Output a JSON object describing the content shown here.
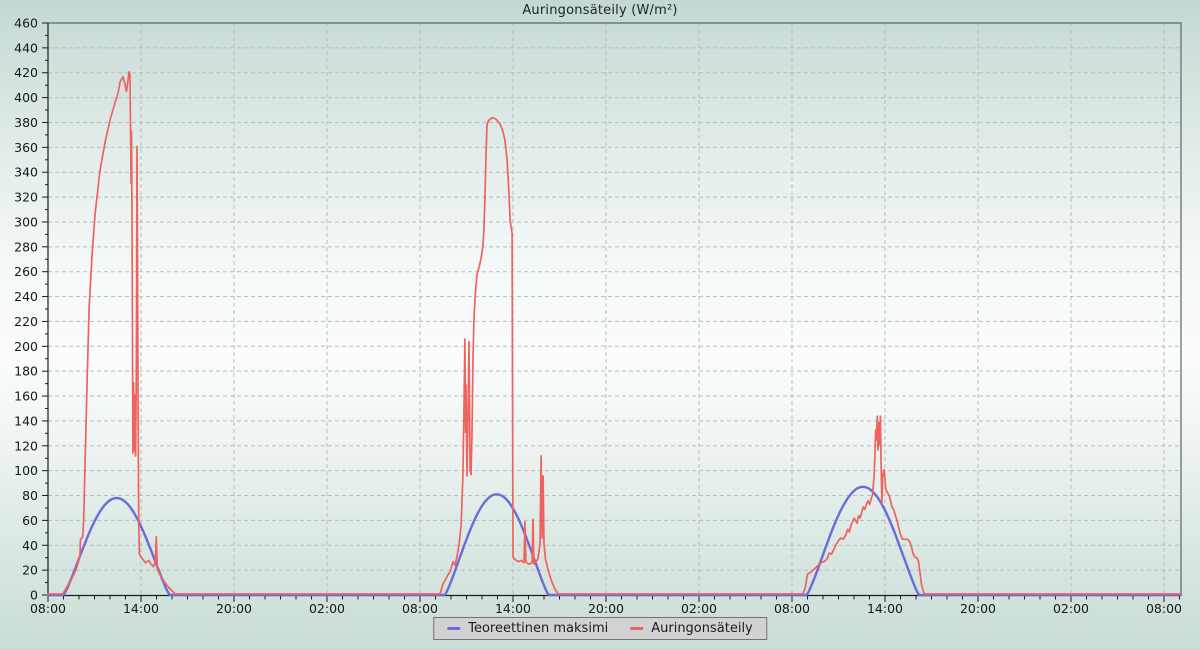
{
  "page": {
    "title": "Auringonsäteily (W/m²)"
  },
  "chart_data": {
    "type": "line",
    "title": "Auringonsäteily (W/m²)",
    "x_axis": {
      "unit": "time-of-day",
      "span_hours": 72,
      "major_tick_interval_hours": 6,
      "minor_tick_interval_hours": 1,
      "tick_labels": [
        "08:00",
        "14:00",
        "20:00",
        "02:00",
        "08:00",
        "14:00",
        "20:00",
        "02:00",
        "08:00",
        "14:00",
        "20:00",
        "02:00",
        "08:00"
      ]
    },
    "y_axis": {
      "min": 0,
      "max": 460,
      "major_step": 20,
      "minor_step": 10,
      "unit": "W/m²"
    },
    "grid": {
      "style": "dashed",
      "color": "#b7bdbd"
    },
    "legend": {
      "position": "bottom-center"
    },
    "series": [
      {
        "name": "Teoreettinen maksimi",
        "color": "#6b6bd9",
        "shape": "clear-sky-bell",
        "bells": [
          {
            "start_h": 1.0,
            "peak_h": 4.55,
            "peak_value": 78,
            "end_h": 7.85
          },
          {
            "start_h": 25.6,
            "peak_h": 28.85,
            "peak_value": 81,
            "end_h": 32.3
          },
          {
            "start_h": 48.95,
            "peak_h": 52.55,
            "peak_value": 87,
            "end_h": 56.2
          }
        ]
      },
      {
        "name": "Auringonsäteily",
        "color": "#ee625f",
        "points": [
          [
            0,
            0
          ],
          [
            0.97,
            0
          ],
          [
            1.1,
            3
          ],
          [
            1.42,
            10
          ],
          [
            1.68,
            16
          ],
          [
            1.81,
            20
          ],
          [
            1.97,
            26
          ],
          [
            2.06,
            31
          ],
          [
            2.1,
            44
          ],
          [
            2.24,
            46
          ],
          [
            2.3,
            60
          ],
          [
            2.4,
            110
          ],
          [
            2.52,
            170
          ],
          [
            2.65,
            230
          ],
          [
            2.84,
            272
          ],
          [
            3.03,
            305
          ],
          [
            3.35,
            340
          ],
          [
            3.68,
            363
          ],
          [
            4.0,
            381
          ],
          [
            4.32,
            395
          ],
          [
            4.52,
            403
          ],
          [
            4.65,
            412
          ],
          [
            4.84,
            416
          ],
          [
            4.97,
            410
          ],
          [
            5.06,
            404
          ],
          [
            5.16,
            413
          ],
          [
            5.23,
            420
          ],
          [
            5.29,
            417
          ],
          [
            5.32,
            376
          ],
          [
            5.36,
            330
          ],
          [
            5.39,
            372
          ],
          [
            5.42,
            300
          ],
          [
            5.45,
            205
          ],
          [
            5.48,
            113
          ],
          [
            5.52,
            170
          ],
          [
            5.55,
            115
          ],
          [
            5.6,
            160
          ],
          [
            5.65,
            111
          ],
          [
            5.7,
            175
          ],
          [
            5.74,
            360
          ],
          [
            5.77,
            300
          ],
          [
            5.81,
            150
          ],
          [
            5.85,
            60
          ],
          [
            5.9,
            32
          ],
          [
            6.1,
            28
          ],
          [
            6.3,
            25
          ],
          [
            6.5,
            27
          ],
          [
            6.65,
            24
          ],
          [
            6.8,
            22
          ],
          [
            6.93,
            26
          ],
          [
            6.99,
            46
          ],
          [
            7.05,
            20
          ],
          [
            7.2,
            16
          ],
          [
            7.5,
            10
          ],
          [
            7.8,
            5
          ],
          [
            8.05,
            2
          ],
          [
            8.2,
            0
          ],
          [
            25.29,
            0
          ],
          [
            25.48,
            8
          ],
          [
            25.74,
            14
          ],
          [
            25.94,
            18
          ],
          [
            26.13,
            26
          ],
          [
            26.26,
            23
          ],
          [
            26.39,
            30
          ],
          [
            26.52,
            40
          ],
          [
            26.65,
            55
          ],
          [
            26.71,
            75
          ],
          [
            26.77,
            95
          ],
          [
            26.84,
            150
          ],
          [
            26.9,
            205
          ],
          [
            26.94,
            130
          ],
          [
            26.97,
            168
          ],
          [
            27.03,
            95
          ],
          [
            27.1,
            150
          ],
          [
            27.16,
            203
          ],
          [
            27.23,
            100
          ],
          [
            27.29,
            96
          ],
          [
            27.35,
            125
          ],
          [
            27.42,
            190
          ],
          [
            27.48,
            220
          ],
          [
            27.55,
            237
          ],
          [
            27.61,
            248
          ],
          [
            27.68,
            257
          ],
          [
            27.81,
            263
          ],
          [
            27.94,
            270
          ],
          [
            28.06,
            280
          ],
          [
            28.13,
            295
          ],
          [
            28.19,
            318
          ],
          [
            28.26,
            352
          ],
          [
            28.32,
            378
          ],
          [
            28.45,
            381
          ],
          [
            28.65,
            383
          ],
          [
            28.9,
            382
          ],
          [
            29.16,
            378
          ],
          [
            29.35,
            372
          ],
          [
            29.48,
            365
          ],
          [
            29.61,
            350
          ],
          [
            29.74,
            322
          ],
          [
            29.81,
            300
          ],
          [
            29.87,
            296
          ],
          [
            29.94,
            290
          ],
          [
            30.0,
            30
          ],
          [
            30.1,
            28
          ],
          [
            30.35,
            26
          ],
          [
            30.55,
            27
          ],
          [
            30.71,
            25
          ],
          [
            30.77,
            58
          ],
          [
            30.83,
            26
          ],
          [
            31.0,
            24
          ],
          [
            31.23,
            25
          ],
          [
            31.29,
            60
          ],
          [
            31.35,
            24
          ],
          [
            31.6,
            28
          ],
          [
            31.74,
            40
          ],
          [
            31.81,
            111
          ],
          [
            31.87,
            45
          ],
          [
            31.94,
            95
          ],
          [
            32.0,
            40
          ],
          [
            32.1,
            28
          ],
          [
            32.3,
            18
          ],
          [
            32.5,
            10
          ],
          [
            32.7,
            4
          ],
          [
            32.9,
            0
          ],
          [
            48.7,
            0
          ],
          [
            48.85,
            5
          ],
          [
            49.0,
            16
          ],
          [
            49.15,
            17
          ],
          [
            49.35,
            19
          ],
          [
            49.6,
            22
          ],
          [
            49.85,
            25
          ],
          [
            50.05,
            26
          ],
          [
            50.25,
            28
          ],
          [
            50.4,
            33
          ],
          [
            50.55,
            32
          ],
          [
            50.7,
            36
          ],
          [
            50.85,
            40
          ],
          [
            51.0,
            43
          ],
          [
            51.15,
            45
          ],
          [
            51.3,
            44
          ],
          [
            51.45,
            47
          ],
          [
            51.6,
            52
          ],
          [
            51.7,
            50
          ],
          [
            51.8,
            55
          ],
          [
            51.9,
            58
          ],
          [
            52.0,
            61
          ],
          [
            52.1,
            59
          ],
          [
            52.2,
            57
          ],
          [
            52.3,
            63
          ],
          [
            52.4,
            61
          ],
          [
            52.5,
            66
          ],
          [
            52.6,
            70
          ],
          [
            52.7,
            68
          ],
          [
            52.8,
            72
          ],
          [
            52.9,
            75
          ],
          [
            53.0,
            72
          ],
          [
            53.1,
            76
          ],
          [
            53.2,
            80
          ],
          [
            53.3,
            95
          ],
          [
            53.35,
            112
          ],
          [
            53.4,
            132
          ],
          [
            53.45,
            124
          ],
          [
            53.5,
            143
          ],
          [
            53.55,
            116
          ],
          [
            53.6,
            138
          ],
          [
            53.65,
            120
          ],
          [
            53.7,
            143
          ],
          [
            53.75,
            105
          ],
          [
            53.8,
            73
          ],
          [
            53.85,
            95
          ],
          [
            53.95,
            100
          ],
          [
            54.05,
            84
          ],
          [
            54.15,
            82
          ],
          [
            54.3,
            78
          ],
          [
            54.45,
            70
          ],
          [
            54.55,
            68
          ],
          [
            54.65,
            64
          ],
          [
            54.8,
            58
          ],
          [
            54.95,
            50
          ],
          [
            55.05,
            46
          ],
          [
            55.15,
            44
          ],
          [
            55.45,
            44
          ],
          [
            55.6,
            42
          ],
          [
            55.7,
            38
          ],
          [
            55.8,
            33
          ],
          [
            55.9,
            30
          ],
          [
            56.05,
            29
          ],
          [
            56.15,
            27
          ],
          [
            56.25,
            18
          ],
          [
            56.35,
            8
          ],
          [
            56.45,
            3
          ],
          [
            56.55,
            0
          ],
          [
            73.1,
            0
          ]
        ]
      }
    ]
  }
}
